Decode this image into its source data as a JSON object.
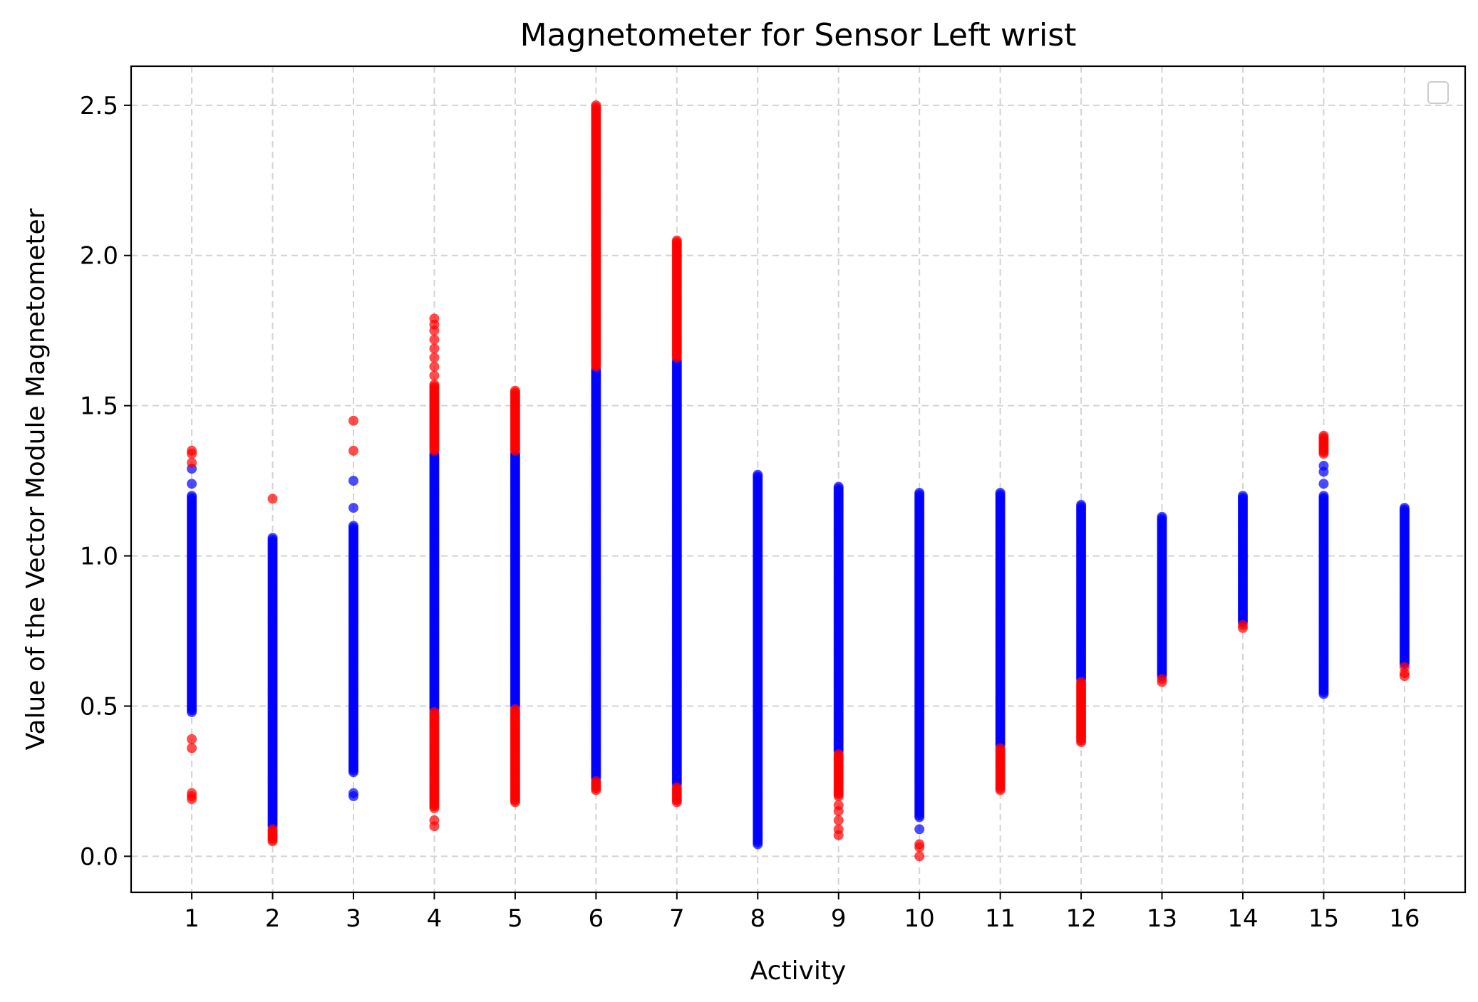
{
  "chart_data": {
    "type": "scatter",
    "title": "Magnetometer for Sensor Left wrist",
    "xlabel": "Activity",
    "ylabel": "Value of the Vector Module Magnetometer",
    "xlim": [
      0.25,
      16.75
    ],
    "ylim": [
      -0.12,
      2.63
    ],
    "xticks": [
      "1",
      "2",
      "3",
      "4",
      "5",
      "6",
      "7",
      "8",
      "9",
      "10",
      "11",
      "12",
      "13",
      "14",
      "15",
      "16"
    ],
    "yticks": [
      "0.0",
      "0.5",
      "1.0",
      "1.5",
      "2.0",
      "2.5"
    ],
    "ytick_values": [
      0.0,
      0.5,
      1.0,
      1.5,
      2.0,
      2.5
    ],
    "grid": true,
    "legend": {
      "placement": "top-right",
      "entries": []
    },
    "colors": {
      "normal": "#0000ff",
      "outlier": "#ff0000"
    },
    "series": [
      {
        "color": "normal",
        "columns": [
          {
            "x": 1,
            "y_min": 0.48,
            "y_max": 1.2,
            "extra": [
              1.24,
              1.29
            ]
          },
          {
            "x": 2,
            "y_min": 0.1,
            "y_max": 1.06,
            "extra": []
          },
          {
            "x": 3,
            "y_min": 0.28,
            "y_max": 1.1,
            "extra": [
              0.2,
              0.21,
              1.16,
              1.25
            ]
          },
          {
            "x": 4,
            "y_min": 0.49,
            "y_max": 1.34,
            "extra": []
          },
          {
            "x": 5,
            "y_min": 0.5,
            "y_max": 1.34,
            "extra": []
          },
          {
            "x": 6,
            "y_min": 0.26,
            "y_max": 1.62,
            "extra": []
          },
          {
            "x": 7,
            "y_min": 0.24,
            "y_max": 1.65,
            "extra": []
          },
          {
            "x": 8,
            "y_min": 0.04,
            "y_max": 1.27,
            "extra": []
          },
          {
            "x": 9,
            "y_min": 0.35,
            "y_max": 1.23,
            "extra": []
          },
          {
            "x": 10,
            "y_min": 0.13,
            "y_max": 1.21,
            "extra": [
              0.09
            ]
          },
          {
            "x": 11,
            "y_min": 0.37,
            "y_max": 1.21,
            "extra": []
          },
          {
            "x": 12,
            "y_min": 0.59,
            "y_max": 1.17,
            "extra": []
          },
          {
            "x": 13,
            "y_min": 0.6,
            "y_max": 1.13,
            "extra": []
          },
          {
            "x": 14,
            "y_min": 0.78,
            "y_max": 1.2,
            "extra": []
          },
          {
            "x": 15,
            "y_min": 0.54,
            "y_max": 1.2,
            "extra": [
              1.24,
              1.28,
              1.3
            ]
          },
          {
            "x": 16,
            "y_min": 0.64,
            "y_max": 1.16,
            "extra": []
          }
        ]
      },
      {
        "color": "outlier",
        "columns": [
          {
            "x": 1,
            "ranges": [],
            "points": [
              0.19,
              0.2,
              0.21,
              0.36,
              0.39,
              1.31,
              1.34,
              1.35
            ]
          },
          {
            "x": 2,
            "ranges": [
              [
                0.05,
                0.09
              ]
            ],
            "points": [
              1.19
            ]
          },
          {
            "x": 3,
            "ranges": [],
            "points": [
              1.35,
              1.45
            ]
          },
          {
            "x": 4,
            "ranges": [
              [
                0.16,
                0.48
              ],
              [
                1.35,
                1.57
              ]
            ],
            "points": [
              0.1,
              0.12,
              1.6,
              1.63,
              1.66,
              1.69,
              1.72,
              1.75,
              1.77,
              1.79
            ]
          },
          {
            "x": 5,
            "ranges": [
              [
                0.18,
                0.49
              ],
              [
                1.35,
                1.55
              ]
            ],
            "points": []
          },
          {
            "x": 6,
            "ranges": [
              [
                0.22,
                0.25
              ],
              [
                1.63,
                2.5
              ]
            ],
            "points": []
          },
          {
            "x": 7,
            "ranges": [
              [
                0.18,
                0.23
              ],
              [
                1.66,
                2.05
              ]
            ],
            "points": []
          },
          {
            "x": 9,
            "ranges": [
              [
                0.2,
                0.34
              ]
            ],
            "points": [
              0.07,
              0.09,
              0.12,
              0.15,
              0.17
            ]
          },
          {
            "x": 10,
            "ranges": [],
            "points": [
              0.0,
              0.03,
              0.04
            ]
          },
          {
            "x": 11,
            "ranges": [
              [
                0.22,
                0.36
              ]
            ],
            "points": []
          },
          {
            "x": 12,
            "ranges": [
              [
                0.38,
                0.58
              ]
            ],
            "points": []
          },
          {
            "x": 13,
            "ranges": [],
            "points": [
              0.58,
              0.59
            ]
          },
          {
            "x": 14,
            "ranges": [],
            "points": [
              0.76,
              0.77
            ]
          },
          {
            "x": 15,
            "ranges": [
              [
                1.34,
                1.4
              ]
            ],
            "points": []
          },
          {
            "x": 16,
            "ranges": [],
            "points": [
              0.6,
              0.61,
              0.63
            ]
          }
        ]
      }
    ]
  }
}
